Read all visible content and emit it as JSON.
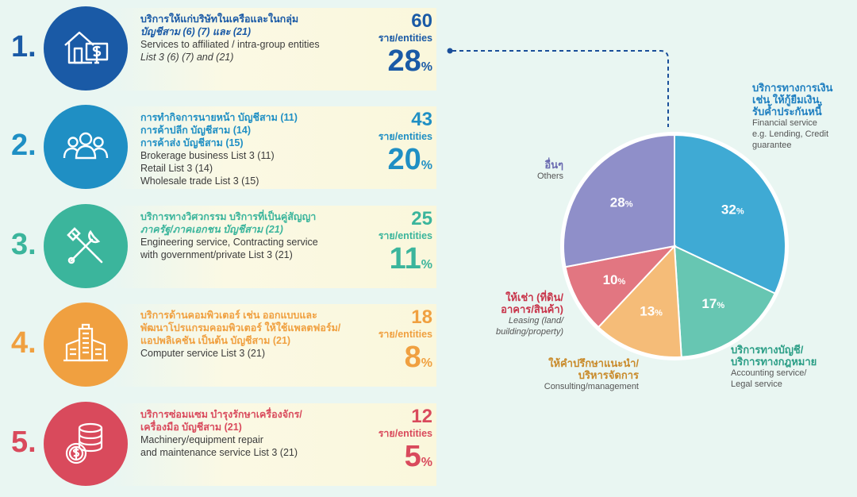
{
  "rows": [
    {
      "num": "1.",
      "th1": "บริการให้แก่บริษัทในเครือและในกลุ่ม",
      "th2": "บัญชีสาม (6) (7) และ (21)",
      "th3": "",
      "en1": "Services to affiliated / intra-group entities",
      "en2": "List 3 (6) (7) and (21)",
      "en3": "",
      "count": "60",
      "unit": "ราย/entities",
      "pct": "28",
      "pct_sign": "%",
      "color": "#1a5aa6",
      "icon": "house-dollar-icon"
    },
    {
      "num": "2.",
      "th1": "การทำกิจการนายหน้า บัญชีสาม (11)",
      "th2": "การค้าปลีก บัญชีสาม (14)",
      "th3": "การค้าส่ง บัญชีสาม (15)",
      "en1": "Brokerage business List 3 (11)",
      "en2": "Retail List 3 (14)",
      "en3": "Wholesale trade List 3 (15)",
      "count": "43",
      "unit": "ราย/entities",
      "pct": "20",
      "pct_sign": "%",
      "color": "#1f8fc4",
      "icon": "people-icon"
    },
    {
      "num": "3.",
      "th1": "บริการทางวิศวกรรม บริการที่เป็นคู่สัญญา",
      "th2": "ภาครัฐ/ภาคเอกชน บัญชีสาม (21)",
      "th3": "",
      "en1": "Engineering service, Contracting service",
      "en2": "with government/private List 3 (21)",
      "en3": "",
      "count": "25",
      "unit": "ราย/entities",
      "pct": "11",
      "pct_sign": "%",
      "color": "#3bb59c",
      "icon": "tools-icon"
    },
    {
      "num": "4.",
      "th1": "บริการด้านคอมพิวเตอร์ เช่น ออกแบบและ",
      "th2": "พัฒนาโปรแกรมคอมพิวเตอร์ ให้ใช้แพลตฟอร์ม/",
      "th3": "แอปพลิเคชัน เป็นต้น บัญชีสาม (21)",
      "en1": "Computer service List 3 (21)",
      "en2": "",
      "en3": "",
      "count": "18",
      "unit": "ราย/entities",
      "pct": "8",
      "pct_sign": "%",
      "color": "#f0a040",
      "icon": "buildings-icon"
    },
    {
      "num": "5.",
      "th1": "บริการซ่อมแซม บำรุงรักษาเครื่องจักร/",
      "th2": "เครื่องมือ บัญชีสาม (21)",
      "th3": "",
      "en1": "Machinery/equipment repair",
      "en2": "and maintenance service List 3 (21)",
      "en3": "",
      "count": "12",
      "unit": "ราย/entities",
      "pct": "5",
      "pct_sign": "%",
      "color": "#d94a5c",
      "icon": "coins-icon"
    }
  ],
  "chart_data": {
    "type": "pie",
    "slices": [
      {
        "name": "Financial service",
        "value": 32,
        "label": "32",
        "color": "#3faad4"
      },
      {
        "name": "Accounting service/Legal service",
        "value": 17,
        "label": "17",
        "color": "#67c6b2"
      },
      {
        "name": "Consulting/management",
        "value": 13,
        "label": "13",
        "color": "#f5bc78"
      },
      {
        "name": "Leasing",
        "value": 10,
        "label": "10",
        "color": "#e27681"
      },
      {
        "name": "Others",
        "value": 28,
        "label": "28",
        "color": "#8f8fc9"
      }
    ],
    "pct_sign": "%"
  },
  "labels": {
    "financial": {
      "t1": "บริการทางการเงิน",
      "t2": "เช่น ให้กู้ยืมเงิน,",
      "t3": "รับค้ำประกันหนี้",
      "e1": "Financial service",
      "e2": "e.g. Lending, Credit",
      "e3": "guarantee",
      "color": "#1f7fc0"
    },
    "accounting": {
      "t1": "บริการทางบัญชี/",
      "t2": "บริการทางกฎหมาย",
      "e1": "Accounting service/",
      "e2": "Legal service",
      "color": "#2b9e86"
    },
    "consulting": {
      "t1": "ให้คำปรึกษาแนะนำ/",
      "t2": "บริหารจัดการ",
      "e1": "Consulting/management",
      "color": "#c98a2a"
    },
    "leasing": {
      "t1": "ให้เช่า (ที่ดิน/",
      "t2": "อาคาร/สินค้า)",
      "e1": "Leasing (land/",
      "e2": "building/property)",
      "color": "#c8344a"
    },
    "others": {
      "t1": "อื่นๆ",
      "e1": "Others",
      "color": "#6a6ab0"
    }
  }
}
